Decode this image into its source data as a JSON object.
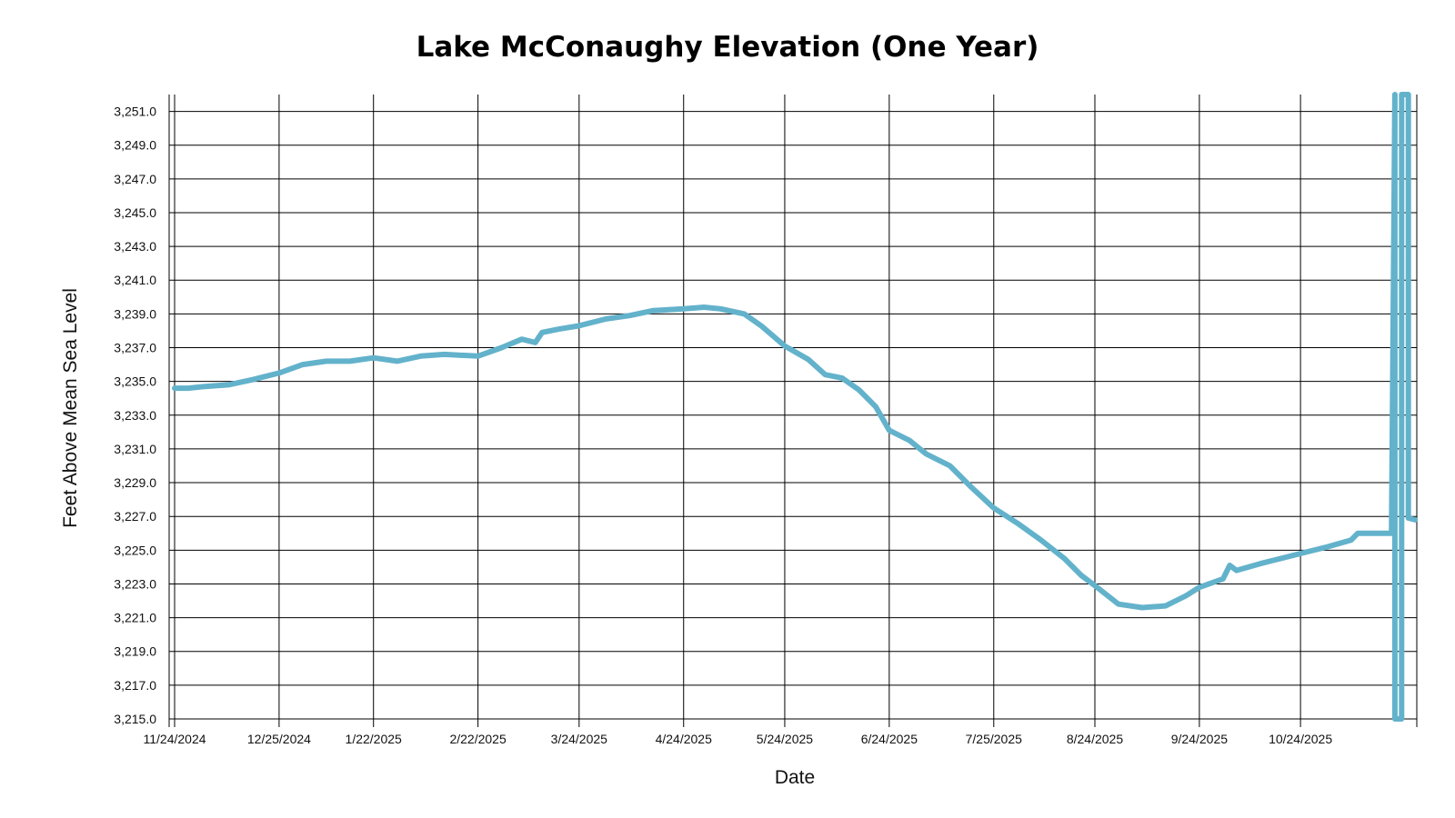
{
  "chart_data": {
    "type": "line",
    "title": "Lake McConaughy Elevation (One Year)",
    "xlabel": "Date",
    "ylabel": "Feet Above Mean Sea Level",
    "grid": true,
    "line_color": "#63B2CB",
    "x_range": [
      "11/24/2024",
      "11/27/2025"
    ],
    "x_ticks": [
      {
        "label": "11/24/2024",
        "date": "2024-11-24"
      },
      {
        "label": "12/25/2024",
        "date": "2024-12-25"
      },
      {
        "label": "1/22/2025",
        "date": "2025-01-22"
      },
      {
        "label": "2/22/2025",
        "date": "2025-02-22"
      },
      {
        "label": "3/24/2025",
        "date": "2025-03-24"
      },
      {
        "label": "4/24/2025",
        "date": "2025-04-24"
      },
      {
        "label": "5/24/2025",
        "date": "2025-05-24"
      },
      {
        "label": "6/24/2025",
        "date": "2025-06-24"
      },
      {
        "label": "7/25/2025",
        "date": "2025-07-25"
      },
      {
        "label": "8/24/2025",
        "date": "2025-08-24"
      },
      {
        "label": "9/24/2025",
        "date": "2025-09-24"
      },
      {
        "label": "10/24/2025",
        "date": "2025-10-24"
      }
    ],
    "ylim": [
      3215,
      3252
    ],
    "y_ticks": [
      {
        "value": 3215,
        "label": "3,215.0"
      },
      {
        "value": 3217,
        "label": "3,217.0"
      },
      {
        "value": 3219,
        "label": "3,219.0"
      },
      {
        "value": 3221,
        "label": "3,221.0"
      },
      {
        "value": 3223,
        "label": "3,223.0"
      },
      {
        "value": 3225,
        "label": "3,225.0"
      },
      {
        "value": 3227,
        "label": "3,227.0"
      },
      {
        "value": 3229,
        "label": "3,229.0"
      },
      {
        "value": 3231,
        "label": "3,231.0"
      },
      {
        "value": 3233,
        "label": "3,233.0"
      },
      {
        "value": 3235,
        "label": "3,235.0"
      },
      {
        "value": 3237,
        "label": "3,237.0"
      },
      {
        "value": 3239,
        "label": "3,239.0"
      },
      {
        "value": 3241,
        "label": "3,241.0"
      },
      {
        "value": 3243,
        "label": "3,243.0"
      },
      {
        "value": 3245,
        "label": "3,245.0"
      },
      {
        "value": 3247,
        "label": "3,247.0"
      },
      {
        "value": 3249,
        "label": "3,249.0"
      },
      {
        "value": 3251,
        "label": "3,251.0"
      }
    ],
    "series": [
      {
        "name": "Elevation",
        "points": [
          {
            "date": "2024-11-24",
            "value": 3234.6
          },
          {
            "date": "2024-11-28",
            "value": 3234.6
          },
          {
            "date": "2024-12-03",
            "value": 3234.7
          },
          {
            "date": "2024-12-10",
            "value": 3234.8
          },
          {
            "date": "2024-12-17",
            "value": 3235.1
          },
          {
            "date": "2024-12-25",
            "value": 3235.5
          },
          {
            "date": "2025-01-01",
            "value": 3236.0
          },
          {
            "date": "2025-01-08",
            "value": 3236.2
          },
          {
            "date": "2025-01-15",
            "value": 3236.2
          },
          {
            "date": "2025-01-22",
            "value": 3236.4
          },
          {
            "date": "2025-01-29",
            "value": 3236.2
          },
          {
            "date": "2025-02-05",
            "value": 3236.5
          },
          {
            "date": "2025-02-12",
            "value": 3236.6
          },
          {
            "date": "2025-02-22",
            "value": 3236.5
          },
          {
            "date": "2025-03-01",
            "value": 3237.0
          },
          {
            "date": "2025-03-07",
            "value": 3237.5
          },
          {
            "date": "2025-03-11",
            "value": 3237.3
          },
          {
            "date": "2025-03-13",
            "value": 3237.9
          },
          {
            "date": "2025-03-18",
            "value": 3238.1
          },
          {
            "date": "2025-03-24",
            "value": 3238.3
          },
          {
            "date": "2025-04-01",
            "value": 3238.7
          },
          {
            "date": "2025-04-08",
            "value": 3238.9
          },
          {
            "date": "2025-04-15",
            "value": 3239.2
          },
          {
            "date": "2025-04-24",
            "value": 3239.3
          },
          {
            "date": "2025-04-30",
            "value": 3239.4
          },
          {
            "date": "2025-05-05",
            "value": 3239.3
          },
          {
            "date": "2025-05-12",
            "value": 3239.0
          },
          {
            "date": "2025-05-17",
            "value": 3238.3
          },
          {
            "date": "2025-05-24",
            "value": 3237.1
          },
          {
            "date": "2025-05-31",
            "value": 3236.3
          },
          {
            "date": "2025-06-05",
            "value": 3235.4
          },
          {
            "date": "2025-06-10",
            "value": 3235.2
          },
          {
            "date": "2025-06-15",
            "value": 3234.5
          },
          {
            "date": "2025-06-20",
            "value": 3233.5
          },
          {
            "date": "2025-06-24",
            "value": 3232.1
          },
          {
            "date": "2025-06-30",
            "value": 3231.5
          },
          {
            "date": "2025-07-05",
            "value": 3230.7
          },
          {
            "date": "2025-07-12",
            "value": 3230.0
          },
          {
            "date": "2025-07-18",
            "value": 3228.8
          },
          {
            "date": "2025-07-25",
            "value": 3227.5
          },
          {
            "date": "2025-08-01",
            "value": 3226.6
          },
          {
            "date": "2025-08-08",
            "value": 3225.6
          },
          {
            "date": "2025-08-15",
            "value": 3224.5
          },
          {
            "date": "2025-08-20",
            "value": 3223.5
          },
          {
            "date": "2025-08-24",
            "value": 3222.9
          },
          {
            "date": "2025-08-31",
            "value": 3221.8
          },
          {
            "date": "2025-09-07",
            "value": 3221.6
          },
          {
            "date": "2025-09-14",
            "value": 3221.7
          },
          {
            "date": "2025-09-20",
            "value": 3222.3
          },
          {
            "date": "2025-09-24",
            "value": 3222.8
          },
          {
            "date": "2025-10-01",
            "value": 3223.3
          },
          {
            "date": "2025-10-03",
            "value": 3224.1
          },
          {
            "date": "2025-10-05",
            "value": 3223.8
          },
          {
            "date": "2025-10-12",
            "value": 3224.2
          },
          {
            "date": "2025-10-18",
            "value": 3224.5
          },
          {
            "date": "2025-10-24",
            "value": 3224.8
          },
          {
            "date": "2025-11-01",
            "value": 3225.2
          },
          {
            "date": "2025-11-08",
            "value": 3225.6
          },
          {
            "date": "2025-11-10",
            "value": 3226.0
          },
          {
            "date": "2025-11-20",
            "value": 3226.0
          },
          {
            "date": "2025-11-21",
            "value": 3252.0
          },
          {
            "date": "2025-11-21",
            "value": 3215.0
          },
          {
            "date": "2025-11-23",
            "value": 3215.0
          },
          {
            "date": "2025-11-23",
            "value": 3252.0
          },
          {
            "date": "2025-11-25",
            "value": 3252.0
          },
          {
            "date": "2025-11-25",
            "value": 3226.9
          },
          {
            "date": "2025-11-27",
            "value": 3226.8
          }
        ]
      }
    ]
  }
}
